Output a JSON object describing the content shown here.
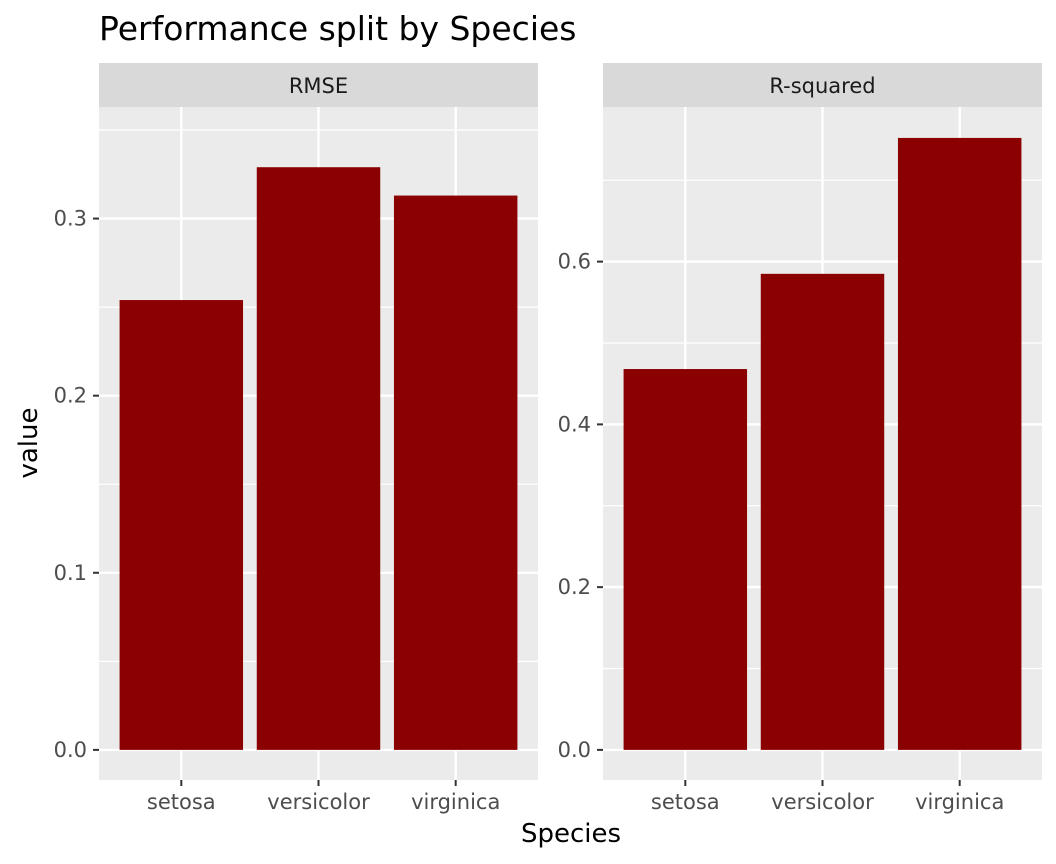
{
  "title": "Performance split by Species",
  "colors": {
    "bar": "#8b0000",
    "panel_bg": "#ebebeb",
    "strip_bg": "#d9d9d9",
    "grid": "#ffffff",
    "tick_mark": "#333333"
  },
  "chart_data": {
    "type": "bar",
    "title": "Performance split by Species",
    "xlabel": "Species",
    "ylabel": "value",
    "grid": true,
    "legend": "none",
    "facets": [
      {
        "name": "RMSE",
        "categories": [
          "setosa",
          "versicolor",
          "virginica"
        ],
        "values": [
          0.254,
          0.329,
          0.313
        ],
        "ylim": [
          -0.017,
          0.363
        ],
        "yticks": [
          0.0,
          0.1,
          0.2,
          0.3
        ],
        "ytick_labels": [
          "0.0",
          "0.1",
          "0.2",
          "0.3"
        ]
      },
      {
        "name": "R-squared",
        "categories": [
          "setosa",
          "versicolor",
          "virginica"
        ],
        "values": [
          0.468,
          0.585,
          0.752
        ],
        "ylim": [
          -0.037,
          0.79
        ],
        "yticks": [
          0.0,
          0.2,
          0.4,
          0.6
        ],
        "ytick_labels": [
          "0.0",
          "0.2",
          "0.4",
          "0.6"
        ]
      }
    ]
  }
}
